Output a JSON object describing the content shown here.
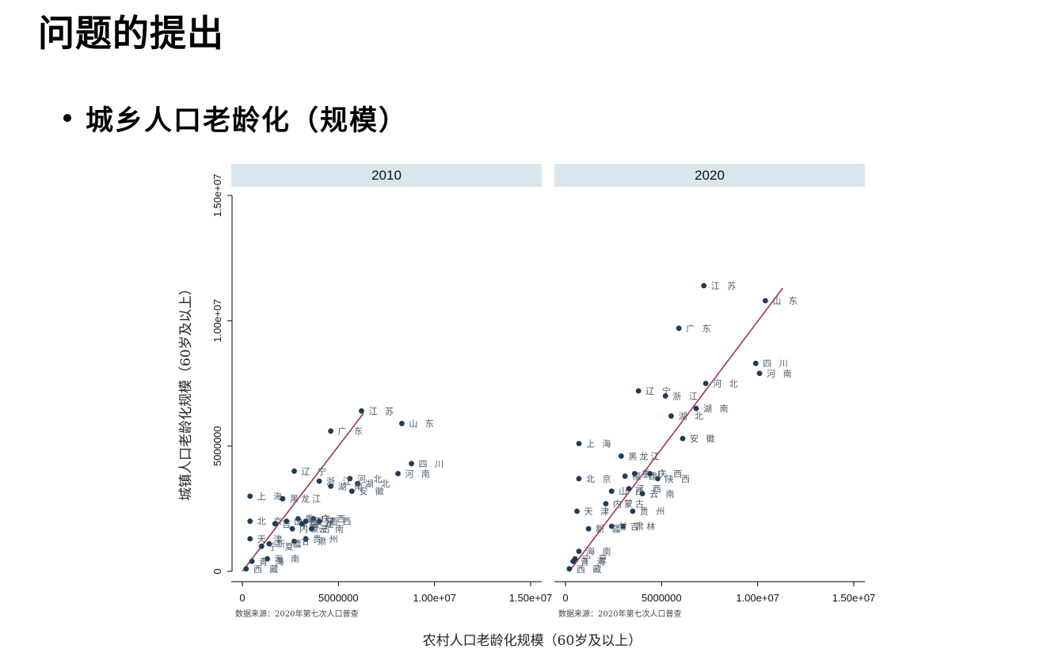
{
  "slide": {
    "title": "问题的提出",
    "bullet": "城乡人口老龄化（规模）"
  },
  "chart_data": {
    "type": "scatter",
    "xlabel": "农村人口老龄化规模（60岁及以上）",
    "ylabel": "城镇人口老龄化规模（60岁及以上）",
    "note": "数据来源：2020年第七次人口普查",
    "xlim": [
      0,
      15000000
    ],
    "ylim": [
      0,
      15000000
    ],
    "xticks": [
      {
        "value": 0,
        "label": "0"
      },
      {
        "value": 5000000,
        "label": "5000000"
      },
      {
        "value": 10000000,
        "label": "1.00e+07"
      },
      {
        "value": 15000000,
        "label": "1.50e+07"
      }
    ],
    "yticks": [
      {
        "value": 0,
        "label": "0"
      },
      {
        "value": 5000000,
        "label": "5000000"
      },
      {
        "value": 10000000,
        "label": "1.00e+07"
      },
      {
        "value": 15000000,
        "label": "1.50e+07"
      }
    ],
    "colors": {
      "point": "#1f3a5a",
      "fit": "#a0384a",
      "header": "#d9e6ee",
      "label": "#4a5a6a"
    },
    "grid": false,
    "panels": [
      {
        "title": "2010",
        "fit": {
          "x": [
            0,
            6300000
          ],
          "y": [
            0,
            6300000
          ]
        },
        "points": [
          {
            "label": "江 苏",
            "x": 6200000,
            "y": 6400000
          },
          {
            "label": "山 东",
            "x": 8300000,
            "y": 5900000
          },
          {
            "label": "广 东",
            "x": 4600000,
            "y": 5600000
          },
          {
            "label": "四 川",
            "x": 8800000,
            "y": 4300000
          },
          {
            "label": "河 南",
            "x": 8100000,
            "y": 3900000
          },
          {
            "label": "河 北",
            "x": 5600000,
            "y": 3700000
          },
          {
            "label": "湖 北",
            "x": 6000000,
            "y": 3500000
          },
          {
            "label": "湖 南",
            "x": 4600000,
            "y": 3400000
          },
          {
            "label": "安 徽",
            "x": 5700000,
            "y": 3200000
          },
          {
            "label": "辽 宁",
            "x": 2700000,
            "y": 4000000
          },
          {
            "label": "浙 江",
            "x": 4000000,
            "y": 3600000
          },
          {
            "label": "上 海",
            "x": 400000,
            "y": 3000000
          },
          {
            "label": "黑龙江",
            "x": 2100000,
            "y": 2900000
          },
          {
            "label": "北 京",
            "x": 400000,
            "y": 2000000
          },
          {
            "label": "陕 西",
            "x": 4000000,
            "y": 2000000
          },
          {
            "label": "吉 林",
            "x": 1700000,
            "y": 1900000
          },
          {
            "label": "重 庆",
            "x": 2900000,
            "y": 2100000
          },
          {
            "label": "江 西",
            "x": 3300000,
            "y": 2000000
          },
          {
            "label": "广 西",
            "x": 3700000,
            "y": 2100000
          },
          {
            "label": "山 西",
            "x": 2300000,
            "y": 2000000
          },
          {
            "label": "福 建",
            "x": 3100000,
            "y": 1900000
          },
          {
            "label": "内蒙古",
            "x": 2600000,
            "y": 1700000
          },
          {
            "label": "云 南",
            "x": 3600000,
            "y": 1700000
          },
          {
            "label": "天 津",
            "x": 400000,
            "y": 1300000
          },
          {
            "label": "贵 州",
            "x": 3300000,
            "y": 1300000
          },
          {
            "label": "甘 肃",
            "x": 2700000,
            "y": 1200000
          },
          {
            "label": "新 疆",
            "x": 1400000,
            "y": 1100000
          },
          {
            "label": "宁 夏",
            "x": 1000000,
            "y": 1000000
          },
          {
            "label": "海 南",
            "x": 1300000,
            "y": 500000
          },
          {
            "label": "青 海",
            "x": 500000,
            "y": 400000
          },
          {
            "label": "西 藏",
            "x": 200000,
            "y": 100000
          }
        ]
      },
      {
        "title": "2020",
        "fit": {
          "x": [
            200000,
            11300000
          ],
          "y": [
            0,
            11300000
          ]
        },
        "points": [
          {
            "label": "江 苏",
            "x": 7200000,
            "y": 11400000
          },
          {
            "label": "山 东",
            "x": 10400000,
            "y": 10800000
          },
          {
            "label": "广 东",
            "x": 5900000,
            "y": 9700000
          },
          {
            "label": "四 川",
            "x": 9900000,
            "y": 8300000
          },
          {
            "label": "河 南",
            "x": 10100000,
            "y": 7900000
          },
          {
            "label": "河 北",
            "x": 7300000,
            "y": 7500000
          },
          {
            "label": "辽 宁",
            "x": 3800000,
            "y": 7200000
          },
          {
            "label": "浙 江",
            "x": 5200000,
            "y": 7000000
          },
          {
            "label": "湖 南",
            "x": 6800000,
            "y": 6500000
          },
          {
            "label": "湖 北",
            "x": 5500000,
            "y": 6200000
          },
          {
            "label": "安 徽",
            "x": 6100000,
            "y": 5300000
          },
          {
            "label": "上 海",
            "x": 700000,
            "y": 5100000
          },
          {
            "label": "黑龙江",
            "x": 2900000,
            "y": 4600000
          },
          {
            "label": "北 京",
            "x": 700000,
            "y": 3700000
          },
          {
            "label": "陕 西",
            "x": 4800000,
            "y": 3700000
          },
          {
            "label": "福 建",
            "x": 3100000,
            "y": 3800000
          },
          {
            "label": "重 庆",
            "x": 3600000,
            "y": 3900000
          },
          {
            "label": "广 西",
            "x": 4400000,
            "y": 3900000
          },
          {
            "label": "山 西",
            "x": 2400000,
            "y": 3200000
          },
          {
            "label": "江 西",
            "x": 3300000,
            "y": 3300000
          },
          {
            "label": "云 南",
            "x": 4000000,
            "y": 3100000
          },
          {
            "label": "内蒙古",
            "x": 2100000,
            "y": 2700000
          },
          {
            "label": "贵 州",
            "x": 3500000,
            "y": 2400000
          },
          {
            "label": "天 津",
            "x": 600000,
            "y": 2400000
          },
          {
            "label": "吉 林",
            "x": 3000000,
            "y": 1800000
          },
          {
            "label": "甘 肃",
            "x": 2400000,
            "y": 1800000
          },
          {
            "label": "新 疆",
            "x": 1200000,
            "y": 1700000
          },
          {
            "label": "海 南",
            "x": 700000,
            "y": 800000
          },
          {
            "label": "宁 夏",
            "x": 500000,
            "y": 500000
          },
          {
            "label": "青 海",
            "x": 400000,
            "y": 400000
          },
          {
            "label": "西 藏",
            "x": 200000,
            "y": 100000
          }
        ]
      }
    ]
  }
}
